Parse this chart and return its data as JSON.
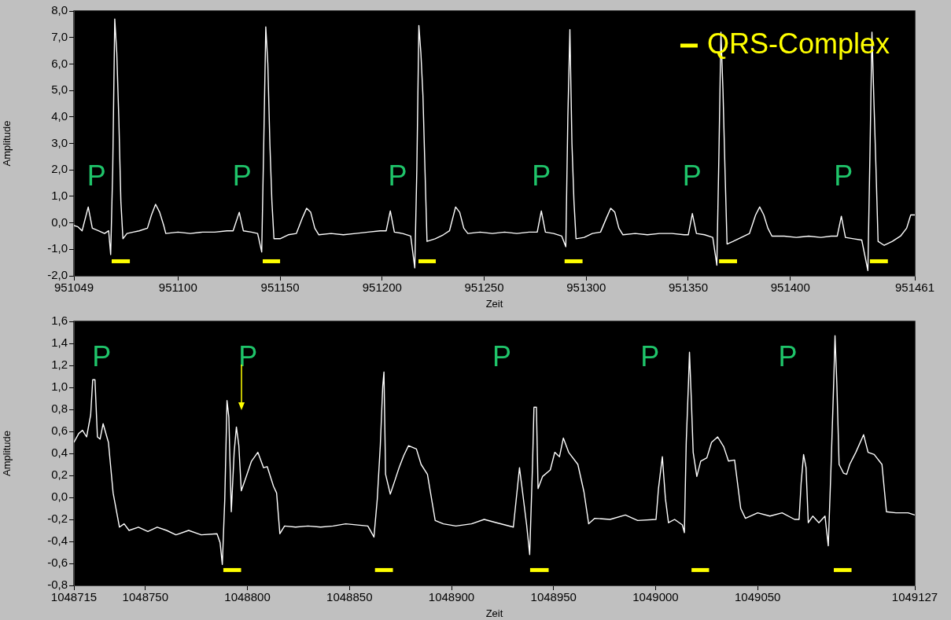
{
  "chart_data": [
    {
      "type": "line",
      "xlabel": "Zeit",
      "ylabel": "Amplitude",
      "grid": false,
      "legend": "top right",
      "marker": "none",
      "xlim": [
        951049,
        951461
      ],
      "xticks": [
        951049,
        951100,
        951150,
        951200,
        951250,
        951300,
        951350,
        951400,
        951461
      ],
      "ylim": [
        -2,
        8
      ],
      "yticks": [
        {
          "value": 8,
          "label": "8,0"
        },
        {
          "value": 7,
          "label": "7,0"
        },
        {
          "value": 6,
          "label": "6,0"
        },
        {
          "value": 5,
          "label": "5,0"
        },
        {
          "value": 4,
          "label": "4,0"
        },
        {
          "value": 3,
          "label": "3,0"
        },
        {
          "value": 2,
          "label": "2,0"
        },
        {
          "value": 1,
          "label": "1,0"
        },
        {
          "value": 0,
          "label": "0,0"
        },
        {
          "value": -1,
          "label": "-1,0"
        },
        {
          "value": -2,
          "label": "-2,0"
        }
      ],
      "annotations": [
        "P",
        "P",
        "P",
        "P",
        "P",
        "P"
      ],
      "series": [
        {
          "color": "#ffffff",
          "x": [
            951049,
            951051,
            951053,
            951056,
            951058,
            951061,
            951064,
            951066,
            951067,
            951068,
            951069,
            951070,
            951071,
            951072,
            951073,
            951075,
            951078,
            951081,
            951085,
            951087,
            951089,
            951091,
            951093,
            951094,
            951100,
            951106,
            951112,
            951118,
            951124,
            951127,
            951130,
            951132,
            951136,
            951139,
            951141,
            951142,
            951143,
            951144,
            951145,
            951146,
            951147,
            951150,
            951154,
            951158,
            951161,
            951163,
            951165,
            951167,
            951169,
            951175,
            951181,
            951187,
            951193,
            951199,
            951202,
            951204,
            951206,
            951210,
            951214,
            951216,
            951217,
            951218,
            951219,
            951220,
            951221,
            951222,
            951226,
            951230,
            951233,
            951236,
            951238,
            951240,
            951242,
            951248,
            951254,
            951260,
            951266,
            951272,
            951276,
            951278,
            951280,
            951284,
            951288,
            951290,
            951291,
            951292,
            951293,
            951294,
            951295,
            951299,
            951303,
            951307,
            951310,
            951312,
            951314,
            951316,
            951318,
            951324,
            951330,
            951336,
            951342,
            951348,
            951350,
            951352,
            951354,
            951358,
            951362,
            951364,
            951365,
            951366,
            951367,
            951368,
            951369,
            951372,
            951376,
            951380,
            951383,
            951385,
            951387,
            951389,
            951391,
            951397,
            951403,
            951409,
            951415,
            951420,
            951423,
            951425,
            951427,
            951431,
            951435,
            951438,
            951439,
            951440,
            951441,
            951442,
            951443,
            951446,
            951450,
            951454,
            951457,
            951459,
            951461
          ],
          "values": [
            -0.1,
            -0.15,
            -0.3,
            0.6,
            -0.2,
            -0.3,
            -0.4,
            -0.3,
            -1.2,
            2.0,
            7.7,
            6.4,
            3.9,
            0.8,
            -0.6,
            -0.4,
            -0.35,
            -0.3,
            -0.2,
            0.3,
            0.7,
            0.4,
            -0.1,
            -0.4,
            -0.35,
            -0.4,
            -0.35,
            -0.35,
            -0.3,
            -0.3,
            0.4,
            -0.3,
            -0.35,
            -0.4,
            -1.1,
            3.0,
            7.4,
            6.0,
            3.0,
            0.8,
            -0.6,
            -0.6,
            -0.45,
            -0.4,
            0.2,
            0.55,
            0.4,
            -0.2,
            -0.45,
            -0.4,
            -0.45,
            -0.4,
            -0.35,
            -0.3,
            -0.3,
            0.45,
            -0.35,
            -0.4,
            -0.5,
            -1.7,
            2.0,
            7.45,
            6.4,
            4.8,
            2.0,
            -0.7,
            -0.6,
            -0.45,
            -0.3,
            0.6,
            0.4,
            -0.2,
            -0.4,
            -0.35,
            -0.4,
            -0.35,
            -0.4,
            -0.35,
            -0.35,
            0.45,
            -0.35,
            -0.4,
            -0.5,
            -0.9,
            4.0,
            7.3,
            3.0,
            0.8,
            -0.6,
            -0.55,
            -0.4,
            -0.35,
            0.2,
            0.55,
            0.4,
            -0.2,
            -0.45,
            -0.4,
            -0.45,
            -0.4,
            -0.4,
            -0.45,
            -0.45,
            0.35,
            -0.4,
            -0.45,
            -0.55,
            -1.6,
            2.5,
            7.2,
            5.0,
            2.0,
            -0.8,
            -0.7,
            -0.55,
            -0.4,
            0.3,
            0.6,
            0.3,
            -0.2,
            -0.5,
            -0.5,
            -0.55,
            -0.5,
            -0.55,
            -0.5,
            -0.5,
            0.25,
            -0.55,
            -0.6,
            -0.65,
            -1.8,
            2.5,
            7.2,
            4.5,
            2.0,
            -0.7,
            -0.85,
            -0.7,
            -0.5,
            -0.2,
            0.3,
            0.3
          ]
        },
        {
          "name": "QRS-Complex",
          "color": "#ffff00",
          "x": [
            951067.5,
            951076.4
          ],
          "values": [
            -1.45,
            -1.45
          ]
        },
        {
          "color": "#ffff00",
          "x": [
            951141.5,
            951150
          ],
          "values": [
            -1.45,
            -1.45
          ]
        },
        {
          "color": "#ffff00",
          "x": [
            951217.8,
            951226.3
          ],
          "values": [
            -1.45,
            -1.45
          ]
        },
        {
          "color": "#ffff00",
          "x": [
            951289.4,
            951298.2
          ],
          "values": [
            -1.45,
            -1.45
          ]
        },
        {
          "color": "#ffff00",
          "x": [
            951365.1,
            951373.9
          ],
          "values": [
            -1.45,
            -1.45
          ]
        },
        {
          "color": "#ffff00",
          "x": [
            951439,
            951447.8
          ],
          "values": [
            -1.45,
            -1.45
          ]
        }
      ]
    },
    {
      "type": "line",
      "xlabel": "Zeit",
      "ylabel": "Amplitude",
      "grid": false,
      "marker": "none",
      "xlim": [
        1048715,
        1049127
      ],
      "xticks": [
        1048715,
        1048750,
        1048800,
        1048850,
        1048900,
        1048950,
        1049000,
        1049050,
        1049127
      ],
      "ylim": [
        -0.8,
        1.6
      ],
      "yticks": [
        {
          "value": 1.6,
          "label": "1,6"
        },
        {
          "value": 1.4,
          "label": "1,4"
        },
        {
          "value": 1.2,
          "label": "1,2"
        },
        {
          "value": 1.0,
          "label": "1,0"
        },
        {
          "value": 0.8,
          "label": "0,8"
        },
        {
          "value": 0.6,
          "label": "0,6"
        },
        {
          "value": 0.4,
          "label": "0,4"
        },
        {
          "value": 0.2,
          "label": "0,2"
        },
        {
          "value": 0,
          "label": "0,0"
        },
        {
          "value": -0.2,
          "label": "-0,2"
        },
        {
          "value": -0.4,
          "label": "-0,4"
        },
        {
          "value": -0.6,
          "label": "-0,6"
        },
        {
          "value": -0.8,
          "label": "-0,8"
        }
      ],
      "annotations": [
        "P",
        "P",
        "P",
        "P",
        "P"
      ],
      "series": [
        {
          "color": "#ffffff",
          "x": [
            1048715,
            1048717.3,
            1048719.2,
            1048721.2,
            1048723.2,
            1048724.2,
            1048725.3,
            1048726.5,
            1048727.8,
            1048729.3,
            1048731.9,
            1048734.2,
            1048737.3,
            1048739.6,
            1048742,
            1048746.6,
            1048751.2,
            1048755.8,
            1048760.4,
            1048765,
            1048771.2,
            1048777.4,
            1048785.1,
            1048786.6,
            1048787.7,
            1048788.9,
            1048790,
            1048790.9,
            1048792.1,
            1048793.5,
            1048794.6,
            1048795.8,
            1048797,
            1048798.9,
            1048802,
            1048805.1,
            1048807.9,
            1048809.7,
            1048812.8,
            1048814.3,
            1048815.9,
            1048818.2,
            1048823.6,
            1048829.7,
            1048835.9,
            1048842,
            1048848.2,
            1048859,
            1048862,
            1048863.6,
            1048865.1,
            1048866.3,
            1048866.9,
            1048867.7,
            1048870,
            1048872,
            1048874.3,
            1048876.6,
            1048878.9,
            1048882.8,
            1048885.1,
            1048888.2,
            1048892,
            1048896,
            1048902.1,
            1048909.8,
            1048916,
            1048922.1,
            1048930.3,
            1048933.3,
            1048934.8,
            1048936.8,
            1048938.3,
            1048939.7,
            1048940.4,
            1048941.6,
            1048942.4,
            1048944.6,
            1048948.4,
            1048950.6,
            1048952.9,
            1048954.8,
            1048957.4,
            1048961.9,
            1048964.9,
            1048967.2,
            1048970.2,
            1048977.7,
            1048985.2,
            1048991.2,
            1049000.2,
            1049001.4,
            1049003.3,
            1049004.8,
            1049006.3,
            1049009.3,
            1049013.1,
            1049014.1,
            1049015,
            1049016.1,
            1049016.6,
            1049017.5,
            1049018.4,
            1049020.2,
            1049022.1,
            1049025.1,
            1049027.4,
            1049030.4,
            1049033.4,
            1049035.7,
            1049038.7,
            1049041.7,
            1049044,
            1049050,
            1049056,
            1049062,
            1049068.1,
            1049070.3,
            1049071.3,
            1049072.5,
            1049073.7,
            1049074.8,
            1049077,
            1049080,
            1049083,
            1049084.6,
            1049086.1,
            1049087.3,
            1049087.9,
            1049088.8,
            1049089.9,
            1049092.1,
            1049093.6,
            1049095.1,
            1049098.1,
            1049101.9,
            1049104.1,
            1049107.1,
            1049110.9,
            1049113.1,
            1049117.7,
            1049123.7,
            1049127
          ],
          "values": [
            0.5,
            0.58,
            0.61,
            0.55,
            0.75,
            1.07,
            1.07,
            0.55,
            0.53,
            0.67,
            0.5,
            0.04,
            -0.27,
            -0.24,
            -0.3,
            -0.27,
            -0.31,
            -0.27,
            -0.3,
            -0.34,
            -0.3,
            -0.34,
            -0.33,
            -0.41,
            -0.61,
            -0.02,
            0.88,
            0.73,
            -0.13,
            0.41,
            0.64,
            0.47,
            0.06,
            0.16,
            0.33,
            0.41,
            0.27,
            0.28,
            0.1,
            0.04,
            -0.33,
            -0.26,
            -0.27,
            -0.26,
            -0.27,
            -0.26,
            -0.24,
            -0.26,
            -0.36,
            -0.02,
            0.47,
            1.01,
            1.14,
            0.21,
            0.03,
            0.14,
            0.27,
            0.38,
            0.47,
            0.44,
            0.3,
            0.21,
            -0.21,
            -0.24,
            -0.26,
            -0.24,
            -0.2,
            -0.23,
            -0.27,
            0.27,
            0.05,
            -0.25,
            -0.52,
            0.3,
            0.82,
            0.82,
            0.08,
            0.19,
            0.25,
            0.41,
            0.37,
            0.54,
            0.41,
            0.3,
            0.05,
            -0.24,
            -0.19,
            -0.2,
            -0.16,
            -0.21,
            -0.2,
            0.08,
            0.37,
            -0.01,
            -0.23,
            -0.2,
            -0.25,
            -0.32,
            0.5,
            1.04,
            1.32,
            0.89,
            0.41,
            0.19,
            0.33,
            0.36,
            0.5,
            0.55,
            0.46,
            0.33,
            0.34,
            -0.1,
            -0.19,
            -0.14,
            -0.17,
            -0.14,
            -0.2,
            -0.2,
            0.13,
            0.39,
            0.27,
            -0.23,
            -0.17,
            -0.23,
            -0.17,
            -0.44,
            0.36,
            1.07,
            1.47,
            1.03,
            0.3,
            0.22,
            0.21,
            0.3,
            0.41,
            0.57,
            0.41,
            0.39,
            0.3,
            -0.13,
            -0.14,
            -0.14,
            -0.16
          ]
        },
        {
          "color": "#ffff00",
          "x": [
            1048788.2,
            1048796.9
          ],
          "values": [
            -0.66,
            -0.66
          ]
        },
        {
          "color": "#ffff00",
          "x": [
            1048862.5,
            1048871.3
          ],
          "values": [
            -0.66,
            -0.66
          ]
        },
        {
          "color": "#ffff00",
          "x": [
            1048938.5,
            1048947.6
          ],
          "values": [
            -0.66,
            -0.66
          ]
        },
        {
          "color": "#ffff00",
          "x": [
            1049017.6,
            1049026.2
          ],
          "values": [
            -0.66,
            -0.66
          ]
        },
        {
          "color": "#ffff00",
          "x": [
            1049087.3,
            1049096
          ],
          "values": [
            -0.66,
            -0.66
          ]
        }
      ]
    }
  ]
}
